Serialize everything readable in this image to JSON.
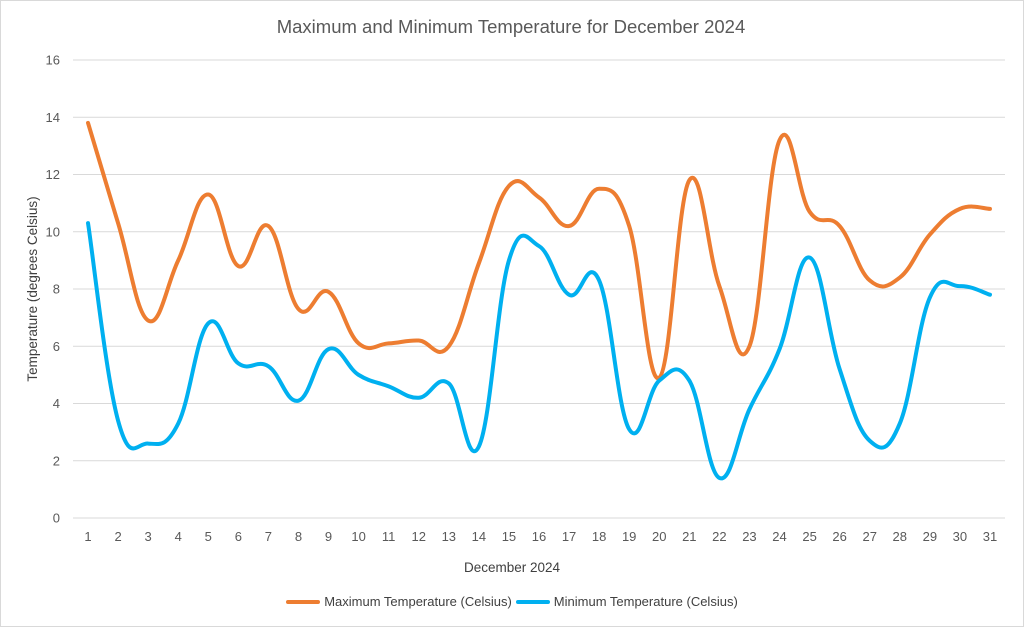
{
  "chart_data": {
    "type": "line",
    "title": "Maximum and Minimum Temperature for December 2024",
    "xlabel": "December 2024",
    "ylabel": "Temperature (degrees Celsius)",
    "x": [
      "1",
      "2",
      "3",
      "4",
      "5",
      "6",
      "7",
      "8",
      "9",
      "10",
      "11",
      "12",
      "13",
      "14",
      "15",
      "16",
      "17",
      "18",
      "19",
      "20",
      "21",
      "22",
      "23",
      "24",
      "25",
      "26",
      "27",
      "28",
      "29",
      "30",
      "31"
    ],
    "ylim": [
      0,
      16
    ],
    "yticks": [
      0,
      2,
      4,
      6,
      8,
      10,
      12,
      14,
      16
    ],
    "grid": true,
    "legend_position": "bottom",
    "series": [
      {
        "name": "Maximum Temperature (Celsius)",
        "color": "#ED7D31",
        "values": [
          13.8,
          10.3,
          6.9,
          9.0,
          11.3,
          8.8,
          10.2,
          7.3,
          7.9,
          6.1,
          6.1,
          6.2,
          6.0,
          8.9,
          11.6,
          11.2,
          10.2,
          11.5,
          10.2,
          4.9,
          11.8,
          8.1,
          6.0,
          13.2,
          10.7,
          10.2,
          8.3,
          8.4,
          9.9,
          10.8,
          10.8
        ]
      },
      {
        "name": "Minimum Temperature (Celsius)",
        "color": "#00B0F0",
        "values": [
          10.3,
          3.4,
          2.6,
          3.3,
          6.8,
          5.4,
          5.3,
          4.1,
          5.9,
          5.0,
          4.6,
          4.2,
          4.7,
          2.5,
          9.0,
          9.5,
          7.8,
          8.3,
          3.1,
          4.8,
          4.8,
          1.4,
          3.8,
          5.9,
          9.1,
          5.2,
          2.7,
          3.3,
          7.7,
          8.1,
          7.8
        ]
      }
    ]
  }
}
